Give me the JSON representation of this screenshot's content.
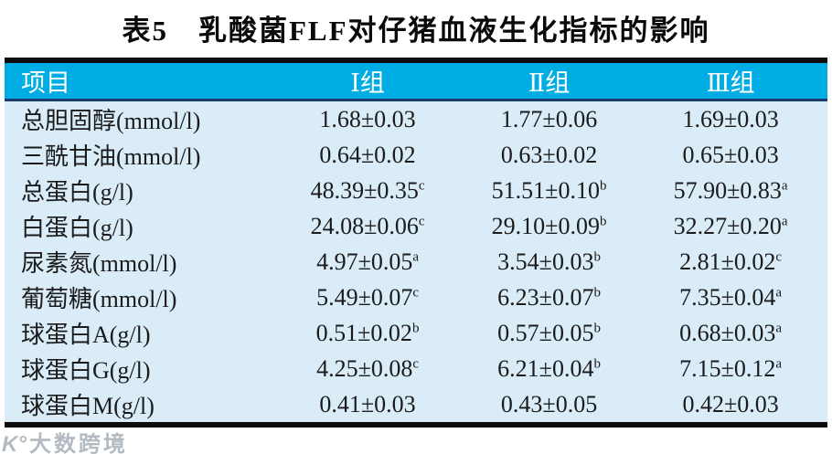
{
  "title": "表5　乳酸菌FLF对仔猪血液生化指标的影响",
  "table": {
    "headers": [
      "项目",
      "Ⅰ组",
      "Ⅱ组",
      "Ⅲ组"
    ],
    "rows": [
      {
        "item": "总胆固醇(mmol/l)",
        "values": [
          {
            "v": "1.68±0.03",
            "s": ""
          },
          {
            "v": "1.77±0.06",
            "s": ""
          },
          {
            "v": "1.69±0.03",
            "s": ""
          }
        ]
      },
      {
        "item": "三酰甘油(mmol/l)",
        "values": [
          {
            "v": "0.64±0.02",
            "s": ""
          },
          {
            "v": "0.63±0.02",
            "s": ""
          },
          {
            "v": "0.65±0.03",
            "s": ""
          }
        ]
      },
      {
        "item": "总蛋白(g/l)",
        "values": [
          {
            "v": "48.39±0.35",
            "s": "c"
          },
          {
            "v": "51.51±0.10",
            "s": "b"
          },
          {
            "v": "57.90±0.83",
            "s": "a"
          }
        ]
      },
      {
        "item": "白蛋白(g/l)",
        "values": [
          {
            "v": "24.08±0.06",
            "s": "c"
          },
          {
            "v": "29.10±0.09",
            "s": "b"
          },
          {
            "v": "32.27±0.20",
            "s": "a"
          }
        ]
      },
      {
        "item": "尿素氮(mmol/l)",
        "values": [
          {
            "v": "4.97±0.05",
            "s": "a"
          },
          {
            "v": "3.54±0.03",
            "s": "b"
          },
          {
            "v": "2.81±0.02",
            "s": "c"
          }
        ]
      },
      {
        "item": "葡萄糖(mmol/l)",
        "values": [
          {
            "v": "5.49±0.07",
            "s": "c"
          },
          {
            "v": "6.23±0.07",
            "s": "b"
          },
          {
            "v": "7.35±0.04",
            "s": "a"
          }
        ]
      },
      {
        "item": "球蛋白A(g/l)",
        "values": [
          {
            "v": "0.51±0.02",
            "s": "b"
          },
          {
            "v": "0.57±0.05",
            "s": "b"
          },
          {
            "v": "0.68±0.03",
            "s": "a"
          }
        ]
      },
      {
        "item": "球蛋白G(g/l)",
        "values": [
          {
            "v": "4.25±0.08",
            "s": "c"
          },
          {
            "v": "6.21±0.04",
            "s": "b"
          },
          {
            "v": "7.15±0.12",
            "s": "a"
          }
        ]
      },
      {
        "item": "球蛋白M(g/l)",
        "values": [
          {
            "v": "0.41±0.03",
            "s": ""
          },
          {
            "v": "0.43±0.05",
            "s": ""
          },
          {
            "v": "0.42±0.03",
            "s": ""
          }
        ]
      }
    ]
  },
  "chart_data": {
    "type": "table",
    "title": "表5 乳酸菌FLF对仔猪血液生化指标的影响",
    "columns": [
      "项目",
      "Ⅰ组",
      "Ⅱ组",
      "Ⅲ组"
    ],
    "rows": [
      [
        "总胆固醇(mmol/l)",
        "1.68±0.03",
        "1.77±0.06",
        "1.69±0.03"
      ],
      [
        "三酰甘油(mmol/l)",
        "0.64±0.02",
        "0.63±0.02",
        "0.65±0.03"
      ],
      [
        "总蛋白(g/l)",
        "48.39±0.35c",
        "51.51±0.10b",
        "57.90±0.83a"
      ],
      [
        "白蛋白(g/l)",
        "24.08±0.06c",
        "29.10±0.09b",
        "32.27±0.20a"
      ],
      [
        "尿素氮(mmol/l)",
        "4.97±0.05a",
        "3.54±0.03b",
        "2.81±0.02c"
      ],
      [
        "葡萄糖(mmol/l)",
        "5.49±0.07c",
        "6.23±0.07b",
        "7.35±0.04a"
      ],
      [
        "球蛋白A(g/l)",
        "0.51±0.02b",
        "0.57±0.05b",
        "0.68±0.03a"
      ],
      [
        "球蛋白G(g/l)",
        "4.25±0.08c",
        "6.21±0.04b",
        "7.15±0.12a"
      ],
      [
        "球蛋白M(g/l)",
        "0.41±0.03",
        "0.43±0.05",
        "0.42±0.03"
      ]
    ]
  },
  "watermark": {
    "logo_icon": "K°",
    "text": "大数跨境"
  },
  "colors": {
    "header_bg": "#00ace4",
    "header_text": "#ffffff",
    "header_underline": "#1c3a6e",
    "body_bg": "#d9ecf8",
    "border_black": "#0c0c0c",
    "text": "#1b1b1b",
    "watermark": "#808c98"
  }
}
